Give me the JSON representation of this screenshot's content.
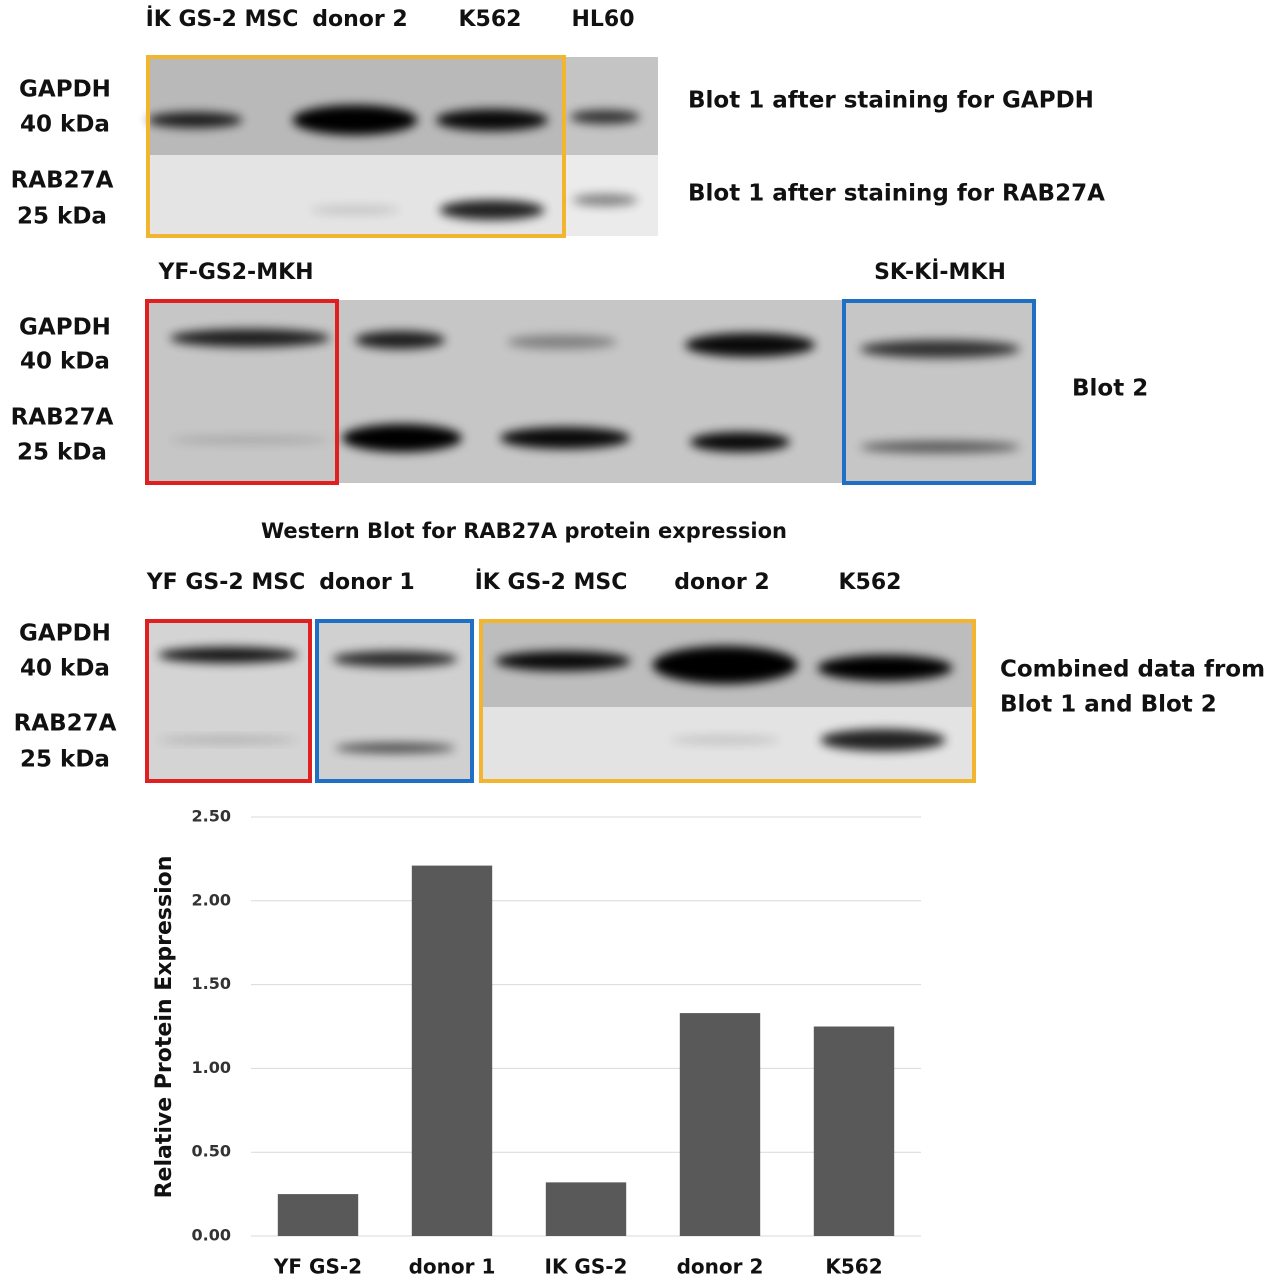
{
  "blot1": {
    "lanes": [
      "İK GS-2 MSC",
      "donor 2",
      "K562",
      "HL60"
    ],
    "rows": [
      {
        "protein": "GAPDH",
        "size": "40 kDa"
      },
      {
        "protein": "RAB27A",
        "size": "25 kDa"
      }
    ],
    "captions": [
      "Blot 1 after staining for GAPDH",
      "Blot 1 after staining for RAB27A"
    ]
  },
  "blot2": {
    "lanes": [
      "YF-GS2-MKH",
      "SK-Kİ-MKH"
    ],
    "rows": [
      {
        "protein": "GAPDH",
        "size": "40 kDa"
      },
      {
        "protein": "RAB27A",
        "size": "25 kDa"
      }
    ],
    "caption": "Blot 2"
  },
  "combined": {
    "title": "Western Blot for RAB27A protein expression",
    "lanes": [
      "YF GS-2 MSC",
      "donor 1",
      "İK GS-2 MSC",
      "donor 2",
      "K562"
    ],
    "rows": [
      {
        "protein": "GAPDH",
        "size": "40 kDa"
      },
      {
        "protein": "RAB27A",
        "size": "25 kDa"
      }
    ],
    "caption": [
      "Combined data from",
      "Blot 1 and Blot 2"
    ]
  },
  "chart_data": {
    "type": "bar",
    "ylabel": "Relative Protein Expression",
    "categories": [
      "YF GS-2",
      "donor 1",
      "IK GS-2",
      "donor 2",
      "K562"
    ],
    "values": [
      0.25,
      2.21,
      0.32,
      1.33,
      1.25
    ],
    "color": "#595959",
    "ylim": [
      0,
      2.5
    ],
    "yticks": [
      {
        "value": 0,
        "label": "0.00"
      },
      {
        "value": 0.5,
        "label": "0.50"
      },
      {
        "value": 1,
        "label": "1.00"
      },
      {
        "value": 1.5,
        "label": "1.50"
      },
      {
        "value": 2,
        "label": "2.00"
      },
      {
        "value": 2.5,
        "label": "2.50"
      }
    ],
    "grid": true
  }
}
